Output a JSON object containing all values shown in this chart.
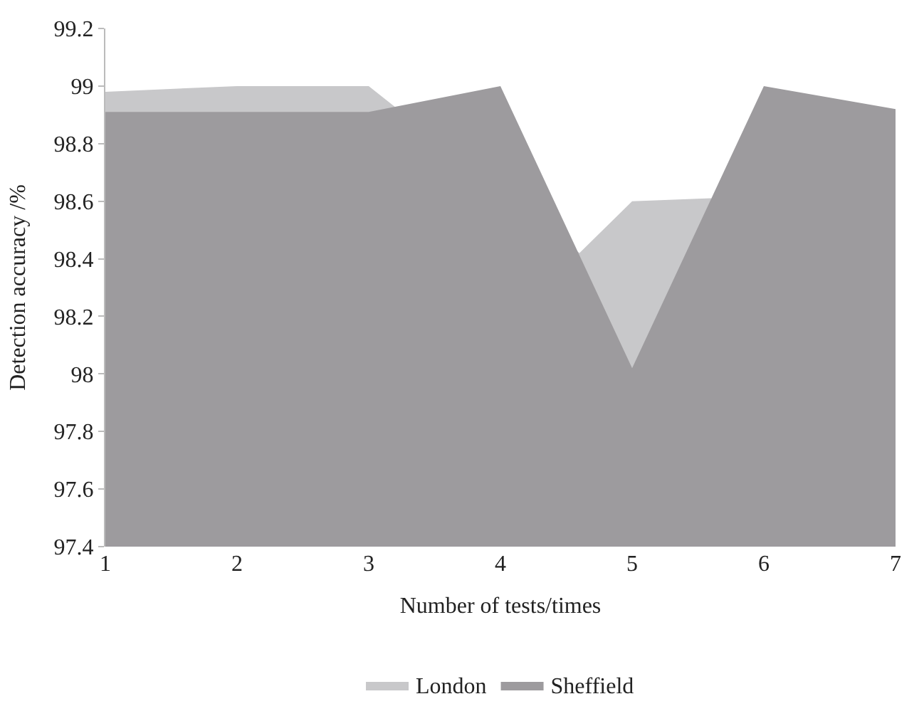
{
  "chart_data": {
    "type": "area",
    "xlabel": "Number of tests/times",
    "ylabel": "Detection accuracy /%",
    "x": [
      1,
      2,
      3,
      4,
      5,
      6,
      7
    ],
    "series": [
      {
        "name": "London",
        "color": "#c8c8ca",
        "x": [
          1,
          2,
          3,
          4.6,
          5,
          5.6
        ],
        "values": [
          98.98,
          99.0,
          99.0,
          98.42,
          98.6,
          98.61
        ]
      },
      {
        "name": "Sheffield",
        "color": "#9d9b9e",
        "values": [
          98.91,
          98.91,
          98.91,
          99.0,
          98.02,
          99.0,
          98.92
        ]
      }
    ],
    "xlim": [
      1,
      7
    ],
    "xticks": [
      1,
      2,
      3,
      4,
      5,
      6,
      7
    ],
    "ylim": [
      97.4,
      99.2
    ],
    "yticks": [
      97.4,
      97.6,
      97.8,
      98,
      98.2,
      98.4,
      98.6,
      98.8,
      99,
      99.2
    ],
    "legend": "bottom"
  }
}
